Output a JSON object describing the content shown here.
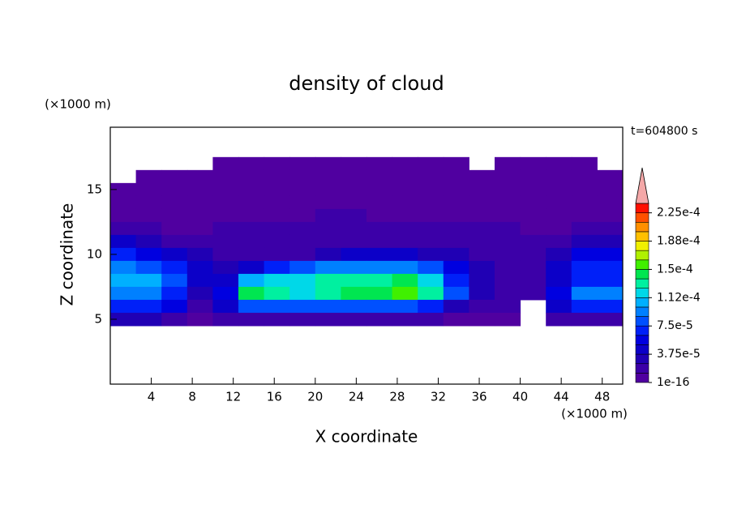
{
  "chart_data": {
    "type": "contour",
    "title": "density of cloud",
    "x_label": "X coordinate",
    "y_label": "Z coordinate",
    "x_unit": "(×1000 m)",
    "y_unit": "(×1000 m)",
    "time_label": "t=604800 s",
    "xlim": [
      0,
      50
    ],
    "ylim": [
      0,
      19.8
    ],
    "xticks": [
      4,
      8,
      12,
      16,
      20,
      24,
      28,
      32,
      36,
      40,
      44,
      48
    ],
    "yticks": [
      5,
      10,
      15
    ],
    "x": [
      1.25,
      3.75,
      6.25,
      8.75,
      11.25,
      13.75,
      16.25,
      18.75,
      21.25,
      23.75,
      26.25,
      28.75,
      31.25,
      33.75,
      36.25,
      38.75,
      41.25,
      43.75,
      46.25,
      48.75
    ],
    "y": [
      17,
      16,
      15,
      14,
      13,
      12,
      11,
      10,
      9,
      8,
      7,
      6,
      5
    ],
    "values": [
      [
        null,
        null,
        null,
        null,
        5e-06,
        5e-06,
        5e-06,
        5e-06,
        5e-06,
        5e-06,
        5e-06,
        5e-06,
        5e-06,
        5e-06,
        null,
        5e-06,
        5e-06,
        5e-06,
        5e-06,
        null
      ],
      [
        null,
        5e-06,
        5e-06,
        5e-06,
        5e-06,
        5e-06,
        5e-06,
        5e-06,
        5e-06,
        5e-06,
        5e-06,
        5e-06,
        5e-06,
        5e-06,
        5e-06,
        5e-06,
        5e-06,
        5e-06,
        5e-06,
        5e-06
      ],
      [
        5e-06,
        5e-06,
        5e-06,
        5e-06,
        5e-06,
        5e-06,
        5e-06,
        5e-06,
        5e-06,
        5e-06,
        5e-06,
        5e-06,
        5e-06,
        5e-06,
        5e-06,
        5e-06,
        5e-06,
        5e-06,
        5e-06,
        5e-06
      ],
      [
        5e-06,
        5e-06,
        5e-06,
        5e-06,
        5e-06,
        5e-06,
        5e-06,
        5e-06,
        5e-06,
        5e-06,
        5e-06,
        5e-06,
        5e-06,
        5e-06,
        5e-06,
        5e-06,
        5e-06,
        5e-06,
        5e-06,
        5e-06
      ],
      [
        5e-06,
        5e-06,
        5e-06,
        5e-06,
        5e-06,
        5e-06,
        5e-06,
        5e-06,
        1.9e-05,
        1.9e-05,
        5e-06,
        5e-06,
        5e-06,
        5e-06,
        5e-06,
        5e-06,
        5e-06,
        5e-06,
        5e-06,
        5e-06
      ],
      [
        1.9e-05,
        1.9e-05,
        5e-06,
        5e-06,
        1.9e-05,
        1.9e-05,
        1.9e-05,
        1.9e-05,
        1.9e-05,
        1.9e-05,
        1.9e-05,
        1.9e-05,
        1.9e-05,
        1.9e-05,
        1.9e-05,
        1.9e-05,
        5e-06,
        5e-06,
        1.9e-05,
        1.9e-05
      ],
      [
        4.4e-05,
        3.1e-05,
        1.9e-05,
        1.9e-05,
        1.9e-05,
        1.9e-05,
        1.9e-05,
        1.9e-05,
        1.9e-05,
        1.9e-05,
        1.9e-05,
        1.9e-05,
        1.9e-05,
        1.9e-05,
        1.9e-05,
        1.9e-05,
        1.9e-05,
        1.9e-05,
        3.1e-05,
        3.1e-05
      ],
      [
        6.9e-05,
        5.6e-05,
        4.4e-05,
        3.1e-05,
        1.9e-05,
        1.9e-05,
        1.9e-05,
        1.9e-05,
        3.1e-05,
        4.4e-05,
        4.4e-05,
        4.4e-05,
        3.1e-05,
        3.1e-05,
        1.9e-05,
        1.9e-05,
        1.9e-05,
        3.1e-05,
        5.6e-05,
        5.6e-05
      ],
      [
        9.4e-05,
        8.1e-05,
        6.9e-05,
        4.4e-05,
        3.1e-05,
        4.4e-05,
        6.9e-05,
        8.1e-05,
        9.4e-05,
        9.4e-05,
        9.4e-05,
        9.4e-05,
        8.1e-05,
        5.6e-05,
        3.1e-05,
        1.9e-05,
        1.9e-05,
        4.4e-05,
        6.9e-05,
        6.9e-05
      ],
      [
        0.000106,
        0.000106,
        8.1e-05,
        4.4e-05,
        4.4e-05,
        0.000106,
        0.000119,
        0.000119,
        0.000131,
        0.000131,
        0.000131,
        0.000144,
        0.000119,
        6.9e-05,
        3.1e-05,
        1.9e-05,
        1.9e-05,
        4.4e-05,
        6.9e-05,
        6.9e-05
      ],
      [
        9.4e-05,
        9.4e-05,
        6.9e-05,
        3.1e-05,
        5.6e-05,
        0.000144,
        0.000131,
        0.000119,
        0.000131,
        0.000144,
        0.000144,
        0.000156,
        0.000131,
        8.1e-05,
        3.1e-05,
        1.9e-05,
        1.9e-05,
        5.6e-05,
        9.4e-05,
        9.4e-05
      ],
      [
        6.9e-05,
        6.9e-05,
        5.6e-05,
        1.9e-05,
        4.4e-05,
        8.1e-05,
        8.1e-05,
        8.1e-05,
        8.1e-05,
        8.1e-05,
        8.1e-05,
        8.1e-05,
        6.9e-05,
        3.1e-05,
        1.9e-05,
        1.9e-05,
        null,
        4.4e-05,
        6.9e-05,
        6.9e-05
      ],
      [
        3.1e-05,
        3.1e-05,
        1.9e-05,
        5e-06,
        1.9e-05,
        1.9e-05,
        1.9e-05,
        1.9e-05,
        1.9e-05,
        1.9e-05,
        1.9e-05,
        1.9e-05,
        1.9e-05,
        5e-06,
        5e-06,
        5e-06,
        null,
        1.9e-05,
        1.9e-05,
        1.9e-05
      ]
    ],
    "colorbar": {
      "levels": [
        1e-16,
        1.25e-05,
        2.5e-05,
        3.75e-05,
        5e-05,
        6.25e-05,
        7.5e-05,
        8.75e-05,
        0.0001,
        0.0001125,
        0.000125,
        0.0001375,
        0.00015,
        0.0001625,
        0.000175,
        0.0001875,
        0.0002,
        0.0002125,
        0.000225
      ],
      "lim": [
        1e-16,
        0.0002375
      ],
      "colors": [
        "#5000a0",
        "#3c00a8",
        "#2000b4",
        "#0c00c8",
        "#0000e0",
        "#0020f8",
        "#0050ff",
        "#0080ff",
        "#00b0ff",
        "#00d8e8",
        "#00f0a0",
        "#00e650",
        "#40f000",
        "#b0f000",
        "#f0f000",
        "#ffc000",
        "#ff9000",
        "#ff5000",
        "#ff1000"
      ],
      "extend_color": "#f4a8a8",
      "ticks": [
        {
          "value": 1e-16,
          "label": "1e-16"
        },
        {
          "value": 3.75e-05,
          "label": "3.75e-5"
        },
        {
          "value": 7.5e-05,
          "label": "7.5e-5"
        },
        {
          "value": 0.0001125,
          "label": "1.12e-4"
        },
        {
          "value": 0.00015,
          "label": "1.5e-4"
        },
        {
          "value": 0.0001875,
          "label": "1.88e-4"
        },
        {
          "value": 0.000225,
          "label": "2.25e-4"
        }
      ]
    }
  }
}
